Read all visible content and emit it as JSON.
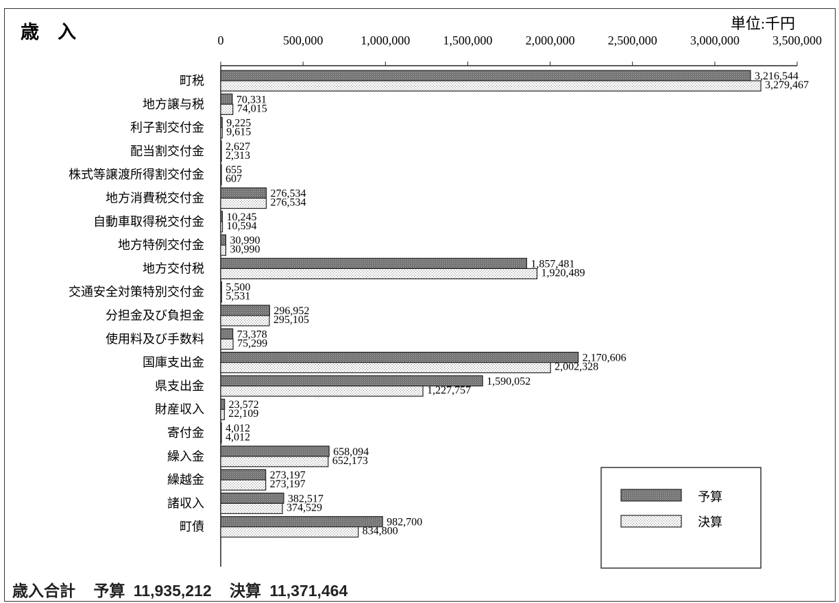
{
  "chart_data": {
    "type": "bar",
    "title": "歳　入",
    "unit": "単位:千円",
    "orientation": "horizontal",
    "xlim": [
      0,
      3500000
    ],
    "ticks": [
      "0",
      "500,000",
      "1,000,000",
      "1,500,000",
      "2,000,000",
      "2,500,000",
      "3,000,000",
      "3,500,000"
    ],
    "tick_values": [
      0,
      500000,
      1000000,
      1500000,
      2000000,
      2500000,
      3000000,
      3500000
    ],
    "categories": [
      "町税",
      "地方譲与税",
      "利子割交付金",
      "配当割交付金",
      "株式等譲渡所得割交付金",
      "地方消費税交付金",
      "自動車取得税交付金",
      "地方特例交付金",
      "地方交付税",
      "交通安全対策特別交付金",
      "分担金及び負担金",
      "使用料及び手数料",
      "国庫支出金",
      "県支出金",
      "財産収入",
      "寄付金",
      "繰入金",
      "繰越金",
      "諸収入",
      "町債"
    ],
    "series": [
      {
        "name": "予算",
        "values": [
          3216544,
          70331,
          9225,
          2627,
          655,
          276534,
          10245,
          30990,
          1857481,
          5500,
          296952,
          73378,
          2170606,
          1590052,
          23572,
          4012,
          658094,
          273197,
          382517,
          982700
        ],
        "labels": [
          "3,216,544",
          "70,331",
          "9,225",
          "2,627",
          "655",
          "276,534",
          "10,245",
          "30,990",
          "1,857,481",
          "5,500",
          "296,952",
          "73,378",
          "2,170,606",
          "1,590,052",
          "23,572",
          "4,012",
          "658,094",
          "273,197",
          "382,517",
          "982,700"
        ]
      },
      {
        "name": "決算",
        "values": [
          3279467,
          74015,
          9615,
          2313,
          607,
          276534,
          10594,
          30990,
          1920489,
          5531,
          295105,
          75299,
          2002328,
          1227757,
          22109,
          4012,
          652173,
          273197,
          374529,
          834800
        ],
        "labels": [
          "3,279,467",
          "74,015",
          "9,615",
          "2,313",
          "607",
          "276,534",
          "10,594",
          "30,990",
          "1,920,489",
          "5,531",
          "295,105",
          "75,299",
          "2,002,328",
          "1,227,757",
          "22,109",
          "4,012",
          "652,173",
          "273,197",
          "374,529",
          "834,800"
        ]
      }
    ],
    "legend": {
      "position": "bottom-right",
      "items": [
        "予算",
        "決算"
      ]
    },
    "colors": {
      "budget": "#7a7a7a",
      "settlement": "#f0f0f0"
    }
  },
  "totals": {
    "label": "歳入合計",
    "budget_label": "予算",
    "budget_value": "11,935,212",
    "settlement_label": "決算",
    "settlement_value": "11,371,464"
  }
}
